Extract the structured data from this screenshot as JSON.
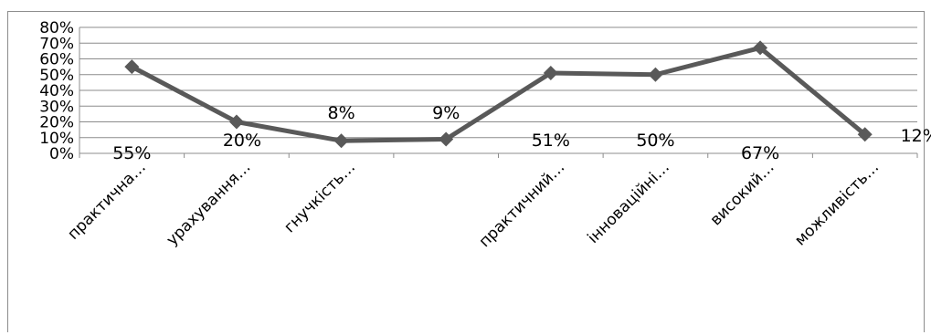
{
  "chart_data": {
    "type": "line",
    "title": "",
    "xlabel": "",
    "ylabel": "",
    "categories": [
      "практична…",
      "урахування…",
      "гнучкість…",
      "",
      "практичний…",
      "інноваційні…",
      "високий…",
      "можливість…"
    ],
    "series": [
      {
        "values": [
          55,
          20,
          8,
          9,
          51,
          50,
          67,
          12
        ]
      }
    ],
    "data_labels": [
      "55%",
      "20%",
      "8%",
      "9%",
      "51%",
      "50%",
      "67%",
      "12%"
    ],
    "y_ticks": [
      "0%",
      "10%",
      "20%",
      "30%",
      "40%",
      "50%",
      "60%",
      "70%",
      "80%"
    ],
    "ylim": [
      0,
      80
    ],
    "grid": true,
    "legend": "none",
    "colors": {
      "line": "#595959",
      "marker": "#595959",
      "grid": "#8c8c8c",
      "axis": "#8c8c8c"
    }
  }
}
